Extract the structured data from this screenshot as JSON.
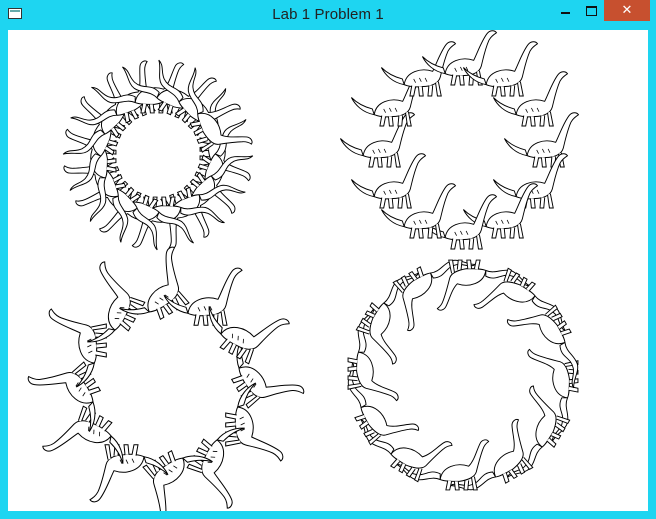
{
  "window": {
    "title": "Lab 1 Problem 1",
    "controls": {
      "minimize_icon": "minimize-icon",
      "maximize_icon": "maximize-icon",
      "close_icon": "close-icon",
      "close_glyph": "✕"
    }
  },
  "colors": {
    "frame": "#1ed5f1",
    "close": "#c7502f",
    "canvas": "#ffffff",
    "stroke": "#000000"
  },
  "canvas": {
    "figure": "dinosaur",
    "rings": [
      {
        "name": "top-left",
        "count": 16,
        "style": "wavy-tail"
      },
      {
        "name": "top-right",
        "count": 12,
        "style": "brontosaurus"
      },
      {
        "name": "bottom-left",
        "count": 12,
        "style": "tilted"
      },
      {
        "name": "bottom-right",
        "count": 12,
        "style": "wavy-tail"
      }
    ]
  }
}
